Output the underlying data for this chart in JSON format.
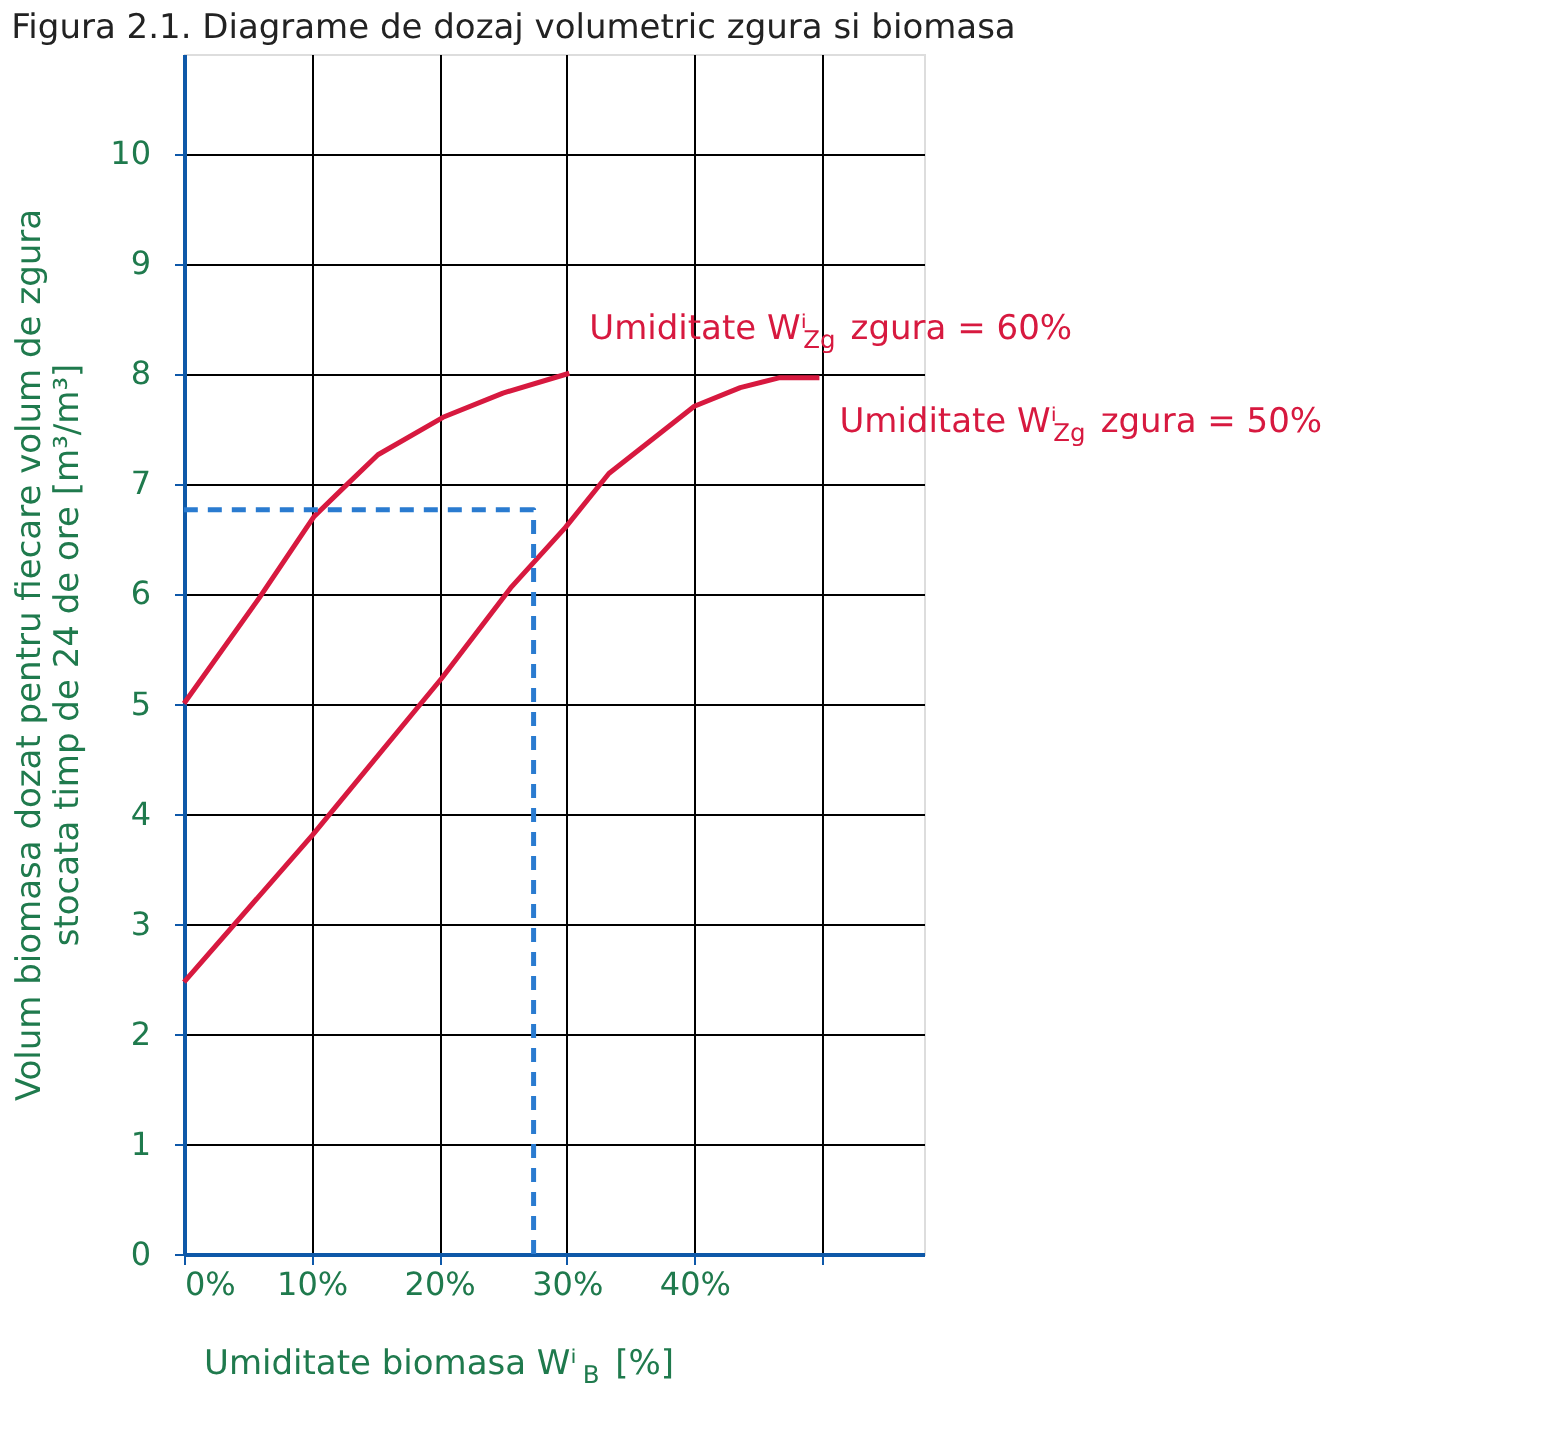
{
  "chart_data": {
    "type": "line",
    "title": "Figura 2.1. Diagrame de dozaj volumetric zgura si biomasa",
    "xlabel": "Umiditate  biomasa Wⁱ$_{B}$ [%]",
    "ylabel": "Volum biomasa dozat pentru fiecare volum de zgura\nstocata timp de 24 de ore [m³/m³]",
    "series": [
      {
        "name": "Umiditate Wⁱ$_{Zg}$ zgura = 60%",
        "color": "#d7193f",
        "x": [
          0,
          5.9,
          10.2,
          12.6,
          15.2,
          20.3,
          25,
          30.2
        ],
        "values": [
          5.0,
          5.96,
          6.7,
          6.97,
          7.26,
          7.6,
          7.82,
          8.0
        ]
      },
      {
        "name": "Umiditate Wⁱ$_{Zg}$ zgura = 50%",
        "color": "#d7193f",
        "x": [
          0,
          10.1,
          20.2,
          25.6,
          29.9,
          33.3,
          40,
          43.6,
          46.7,
          49.8
        ],
        "values": [
          2.47,
          3.81,
          5.23,
          6.05,
          6.6,
          7.09,
          7.7,
          7.87,
          7.96,
          7.96
        ]
      },
      {
        "color": "#2a7bd0",
        "line_style": "dashed",
        "x": [
          27.4,
          27.4,
          0
        ],
        "values": [
          0,
          6.76,
          6.76
        ]
      }
    ],
    "xlim": [
      0,
      58
    ],
    "ylim": [
      0,
      10.9
    ],
    "xticks": [
      {
        "value": 0,
        "label": "0%"
      },
      {
        "value": 10,
        "label": "10%"
      },
      {
        "value": 20,
        "label": "20%"
      },
      {
        "value": 30,
        "label": "30%"
      },
      {
        "value": 40,
        "label": "40%"
      },
      {
        "value": 50,
        "label": null
      }
    ],
    "yticks": [
      0,
      1,
      2,
      3,
      4,
      5,
      6,
      7,
      8,
      9,
      10
    ],
    "grid": true,
    "legend": false,
    "marker": "none",
    "line_style": "solid"
  }
}
